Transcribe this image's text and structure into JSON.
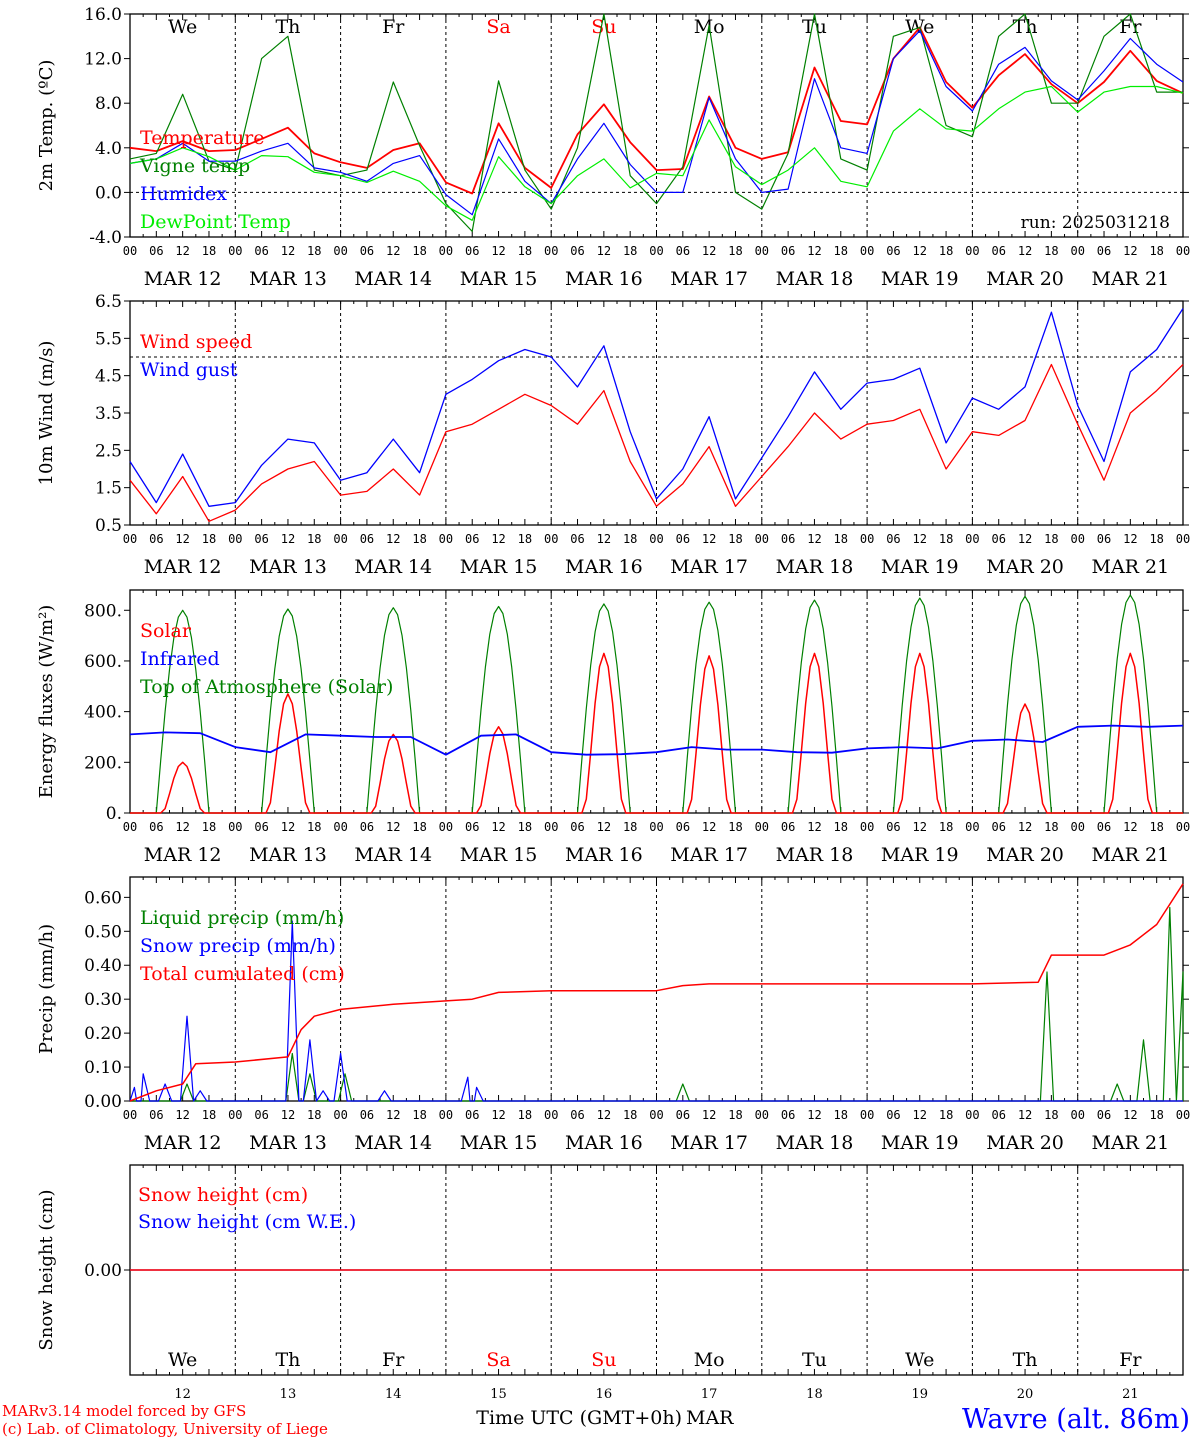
{
  "days": [
    "We",
    "Th",
    "Fr",
    "Sa",
    "Su",
    "Mo",
    "Tu",
    "We",
    "Th",
    "Fr"
  ],
  "weekend_days": [
    3,
    4
  ],
  "dates": [
    "MAR 12",
    "MAR 13",
    "MAR 14",
    "MAR 15",
    "MAR 16",
    "MAR 17",
    "MAR 18",
    "MAR 19",
    "MAR 20",
    "MAR 21"
  ],
  "hour_ticks": [
    "00",
    "06",
    "12",
    "18"
  ],
  "hour_end_tick": "00",
  "bottom_day_numbers": [
    "12",
    "13",
    "14",
    "15",
    "16",
    "17",
    "18",
    "19",
    "20",
    "21"
  ],
  "footer": {
    "model": "MARv3.14 model forced by GFS",
    "lab": "(c) Lab. of Climatology, University of Liege",
    "xlabel": "Time UTC (GMT+0h)",
    "month": "MAR",
    "station": "Wavre (alt. 86m)"
  },
  "colors": {
    "red": "#ff0000",
    "blue": "#0000ff",
    "green": "#008000",
    "lightgreen": "#00ee00"
  },
  "chart_data": [
    {
      "type": "line",
      "ylabel": "2m Temp. (ºC)",
      "ylim": [
        -4,
        16
      ],
      "yticks": [
        "-4.0",
        "0.0",
        "4.0",
        "8.0",
        "12.0",
        "16.0"
      ],
      "yticks_values": [
        -4,
        0,
        4,
        8,
        12,
        16
      ],
      "dashed_ref": 0,
      "annotation": "run: 2025031218",
      "x_hours": [
        0,
        6,
        12,
        18,
        24,
        30,
        36,
        42,
        48,
        54,
        60,
        66,
        72,
        78,
        84,
        90,
        96,
        102,
        108,
        114,
        120,
        126,
        132,
        138,
        144,
        150,
        156,
        162,
        168,
        174,
        180,
        186,
        192,
        198,
        204,
        210,
        216,
        222,
        228,
        234,
        240
      ],
      "series": [
        {
          "name": "Temperature",
          "color": "red",
          "values": [
            4.0,
            3.7,
            4.6,
            3.7,
            3.8,
            4.8,
            5.8,
            3.5,
            2.7,
            2.2,
            3.8,
            4.4,
            0.9,
            -0.1,
            6.2,
            2.2,
            0.4,
            5.2,
            7.9,
            4.5,
            2.0,
            2.1,
            8.6,
            4.0,
            3.0,
            3.6,
            11.2,
            6.4,
            6.1,
            12.0,
            14.8,
            9.9,
            7.6,
            10.5,
            12.4,
            9.7,
            8.0,
            9.9,
            12.7,
            10.0,
            8.9
          ]
        },
        {
          "name": "Vigne temp",
          "color": "green",
          "values": [
            3.0,
            3.5,
            8.8,
            2.8,
            2.0,
            12.0,
            14.0,
            2.0,
            1.5,
            2.0,
            9.9,
            4.2,
            -1.0,
            -3.5,
            10.0,
            2.0,
            -1.5,
            4.0,
            16.0,
            1.5,
            -1.0,
            2.3,
            15.0,
            0.0,
            -1.5,
            3.5,
            16.0,
            3.0,
            2.0,
            14.0,
            14.8,
            6.0,
            5.0,
            14.0,
            16.0,
            8.0,
            8.0,
            14.0,
            16.0,
            9.0,
            9.0
          ]
        },
        {
          "name": "Humidex",
          "color": "blue",
          "values": [
            2.6,
            3.0,
            4.4,
            2.8,
            2.8,
            3.7,
            4.4,
            2.2,
            1.8,
            1.0,
            2.6,
            3.3,
            -0.2,
            -2.0,
            4.8,
            1.0,
            -1.0,
            3.0,
            6.2,
            2.5,
            0.0,
            0.0,
            8.5,
            3.0,
            0.0,
            0.3,
            10.2,
            4.0,
            3.5,
            12.0,
            14.5,
            9.5,
            7.3,
            11.5,
            13.0,
            10.0,
            8.3,
            10.9,
            13.8,
            11.5,
            9.9
          ]
        },
        {
          "name": "DewPoint Temp",
          "color": "lightgreen",
          "values": [
            2.6,
            3.0,
            4.0,
            3.2,
            2.0,
            3.3,
            3.2,
            1.8,
            1.5,
            0.9,
            1.9,
            1.0,
            -1.2,
            -2.5,
            3.2,
            0.5,
            -1.0,
            1.5,
            3.0,
            0.4,
            1.7,
            1.5,
            6.5,
            2.3,
            0.7,
            2.0,
            4.0,
            1.0,
            0.5,
            5.5,
            7.5,
            5.7,
            5.5,
            7.5,
            9.0,
            9.5,
            7.2,
            9.0,
            9.5,
            9.5,
            8.9
          ]
        }
      ]
    },
    {
      "type": "line",
      "ylabel": "10m Wind (m/s)",
      "ylim": [
        0.5,
        6.5
      ],
      "yticks": [
        "0.5",
        "1.5",
        "2.5",
        "3.5",
        "4.5",
        "5.5",
        "6.5"
      ],
      "yticks_values": [
        0.5,
        1.5,
        2.5,
        3.5,
        4.5,
        5.5,
        6.5
      ],
      "dashed_ref": 5.0,
      "x_hours": [
        0,
        6,
        12,
        18,
        24,
        30,
        36,
        42,
        48,
        54,
        60,
        66,
        72,
        78,
        84,
        90,
        96,
        102,
        108,
        114,
        120,
        126,
        132,
        138,
        144,
        150,
        156,
        162,
        168,
        174,
        180,
        186,
        192,
        198,
        204,
        210,
        216,
        222,
        228,
        234,
        240
      ],
      "series": [
        {
          "name": "Wind speed",
          "color": "red",
          "values": [
            1.7,
            0.8,
            1.8,
            0.6,
            0.9,
            1.6,
            2.0,
            2.2,
            1.3,
            1.4,
            2.0,
            1.3,
            3.0,
            3.2,
            3.6,
            4.0,
            3.7,
            3.2,
            4.1,
            2.2,
            1.0,
            1.6,
            2.6,
            1.0,
            1.8,
            2.6,
            3.5,
            2.8,
            3.2,
            3.3,
            3.6,
            2.0,
            3.0,
            2.9,
            3.3,
            4.8,
            3.2,
            1.7,
            3.5,
            4.1,
            4.8
          ]
        },
        {
          "name": "Wind gust",
          "color": "blue",
          "values": [
            2.2,
            1.1,
            2.4,
            1.0,
            1.1,
            2.1,
            2.8,
            2.7,
            1.7,
            1.9,
            2.8,
            1.9,
            4.0,
            4.4,
            4.9,
            5.2,
            5.0,
            4.2,
            5.3,
            3.0,
            1.2,
            2.0,
            3.4,
            1.2,
            2.3,
            3.4,
            4.6,
            3.6,
            4.3,
            4.4,
            4.7,
            2.7,
            3.9,
            3.6,
            4.2,
            6.2,
            3.7,
            2.2,
            4.6,
            5.2,
            6.3
          ]
        }
      ]
    },
    {
      "type": "line",
      "ylabel": "Energy fluxes (W/m²)",
      "ylim": [
        0,
        880
      ],
      "yticks": [
        "0.",
        "200.",
        "400.",
        "600.",
        "800."
      ],
      "yticks_values": [
        0,
        200,
        400,
        600,
        800
      ],
      "solar_peaks": [
        200,
        470,
        310,
        340,
        630,
        620,
        630,
        630,
        430,
        630
      ],
      "toa_peaks": [
        800,
        805,
        810,
        815,
        825,
        832,
        840,
        848,
        855,
        860
      ],
      "ir_values": [
        310,
        318,
        315,
        260,
        240,
        310,
        305,
        300,
        300,
        230,
        305,
        310,
        240,
        230,
        232,
        240,
        260,
        250,
        250,
        240,
        238,
        255,
        260,
        255,
        285,
        290,
        280,
        340,
        345,
        340,
        345
      ],
      "series": [
        {
          "name": "Solar",
          "color": "red"
        },
        {
          "name": "Infrared",
          "color": "blue"
        },
        {
          "name": "Top of Atmosphere (Solar)",
          "color": "green"
        }
      ]
    },
    {
      "type": "line",
      "ylabel": "Precip (mm/h)",
      "ylim": [
        0,
        0.66
      ],
      "yticks": [
        "0.00",
        "0.10",
        "0.20",
        "0.30",
        "0.40",
        "0.50",
        "0.60"
      ],
      "yticks_values": [
        0,
        0.1,
        0.2,
        0.3,
        0.4,
        0.5,
        0.6
      ],
      "series": [
        {
          "name": "Liquid precip (mm/h)",
          "color": "green"
        },
        {
          "name": "Snow precip (mm/h)",
          "color": "blue"
        },
        {
          "name": "Total cumulated (cm)",
          "color": "red"
        }
      ],
      "cumulated": {
        "x_hours": [
          0,
          6,
          12,
          15,
          24,
          36,
          39,
          42,
          48,
          60,
          72,
          78,
          84,
          96,
          108,
          120,
          126,
          132,
          144,
          156,
          168,
          180,
          192,
          207,
          210,
          216,
          222,
          228,
          234,
          240
        ],
        "values": [
          0.0,
          0.03,
          0.05,
          0.11,
          0.115,
          0.13,
          0.21,
          0.25,
          0.27,
          0.285,
          0.295,
          0.3,
          0.32,
          0.325,
          0.325,
          0.325,
          0.34,
          0.345,
          0.345,
          0.345,
          0.345,
          0.345,
          0.345,
          0.35,
          0.43,
          0.43,
          0.43,
          0.46,
          0.52,
          0.64
        ]
      },
      "snow_peaks": [
        [
          1,
          0.04
        ],
        [
          3,
          0.08
        ],
        [
          8,
          0.05
        ],
        [
          13,
          0.25
        ],
        [
          16,
          0.03
        ],
        [
          37,
          0.53
        ],
        [
          41,
          0.18
        ],
        [
          44,
          0.03
        ],
        [
          48,
          0.14
        ],
        [
          58,
          0.03
        ],
        [
          77,
          0.07
        ],
        [
          79,
          0.04
        ]
      ],
      "liquid_peaks": [
        [
          13,
          0.05
        ],
        [
          37,
          0.14
        ],
        [
          41,
          0.08
        ],
        [
          49,
          0.08
        ],
        [
          126,
          0.05
        ],
        [
          209,
          0.38
        ],
        [
          225,
          0.05
        ],
        [
          231,
          0.18
        ],
        [
          237,
          0.57
        ],
        [
          240,
          0.38
        ]
      ]
    },
    {
      "type": "line",
      "ylabel": "Snow height (cm)",
      "ylim": [
        -1,
        1
      ],
      "yticks": [
        "0.00"
      ],
      "yticks_values": [
        0
      ],
      "series": [
        {
          "name": "Snow height (cm)",
          "color": "red",
          "values": [
            0,
            0
          ]
        },
        {
          "name": "Snow height (cm W.E.)",
          "color": "blue",
          "values": [
            0,
            0
          ]
        }
      ]
    }
  ]
}
